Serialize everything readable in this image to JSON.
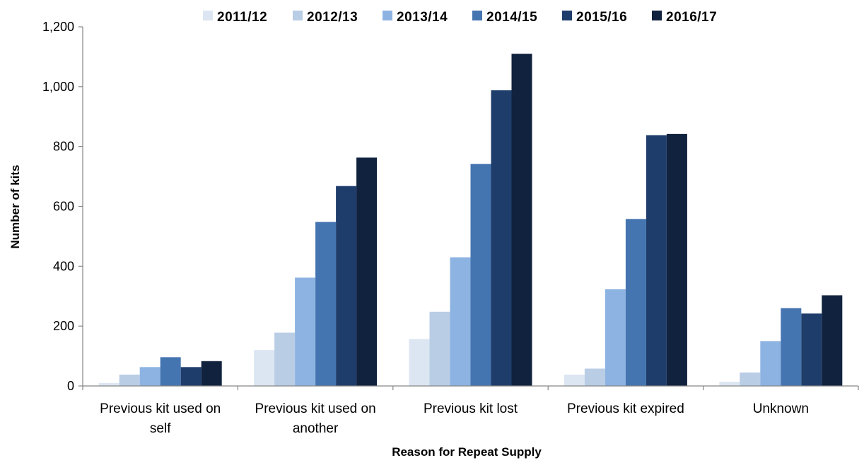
{
  "chart_data": {
    "type": "bar",
    "xlabel": "Reason for Repeat Supply",
    "ylabel": "Number of kits",
    "ylim": [
      0,
      1200
    ],
    "yticks": [
      0,
      200,
      400,
      600,
      800,
      1000,
      1200
    ],
    "ytick_labels": [
      "0",
      "200",
      "400",
      "600",
      "800",
      "1,000",
      "1,200"
    ],
    "grid": false,
    "legend_position": "top",
    "categories": [
      [
        "Previous kit used on",
        "self"
      ],
      [
        "Previous kit used on",
        "another"
      ],
      [
        "Previous kit lost"
      ],
      [
        "Previous kit expired"
      ],
      [
        "Unknown"
      ]
    ],
    "series": [
      {
        "name": "2011/12",
        "color": "#dce6f2",
        "values": [
          10,
          120,
          157,
          38,
          14
        ]
      },
      {
        "name": "2012/13",
        "color": "#b9cde5",
        "values": [
          38,
          178,
          248,
          58,
          45
        ]
      },
      {
        "name": "2013/14",
        "color": "#8db3e2",
        "values": [
          63,
          362,
          430,
          323,
          150
        ]
      },
      {
        "name": "2014/15",
        "color": "#4575b0",
        "values": [
          96,
          548,
          742,
          558,
          260
        ]
      },
      {
        "name": "2015/16",
        "color": "#1f3d6b",
        "values": [
          63,
          668,
          988,
          838,
          242
        ]
      },
      {
        "name": "2016/17",
        "color": "#10223e",
        "values": [
          83,
          763,
          1110,
          842,
          303
        ]
      }
    ]
  }
}
